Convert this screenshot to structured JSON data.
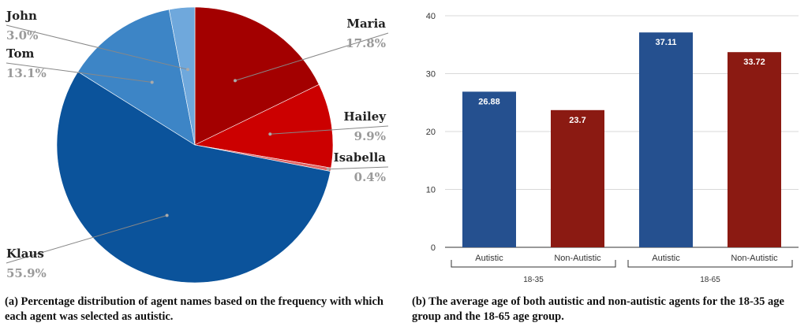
{
  "chart_data": [
    {
      "type": "pie",
      "slices": [
        {
          "label": "Maria",
          "value": 17.8,
          "pct_label": "17.8%",
          "color": "#a30000"
        },
        {
          "label": "Hailey",
          "value": 9.9,
          "pct_label": "9.9%",
          "color": "#cc0000"
        },
        {
          "label": "Isabella",
          "value": 0.4,
          "pct_label": "0.4%",
          "color": "#e06666"
        },
        {
          "label": "Klaus",
          "value": 55.9,
          "pct_label": "55.9%",
          "color": "#0b539b"
        },
        {
          "label": "Tom",
          "value": 13.1,
          "pct_label": "13.1%",
          "color": "#3d85c6"
        },
        {
          "label": "John",
          "value": 3.0,
          "pct_label": "3.0%",
          "color": "#6fa8dc"
        }
      ],
      "caption": "(a) Percentage distribution of agent names based on the frequency with which each agent was selected as autistic."
    },
    {
      "type": "bar",
      "categories": [
        "Autistic",
        "Non-Autistic",
        "Autistic",
        "Non-Autistic"
      ],
      "groups": [
        "18-35",
        "18-65"
      ],
      "values": [
        26.88,
        23.7,
        37.11,
        33.72
      ],
      "value_labels": [
        "26.88",
        "23.7",
        "37.11",
        "33.72"
      ],
      "colors": [
        "#25508f",
        "#8b1a12",
        "#25508f",
        "#8b1a12"
      ],
      "yticks": [
        "0",
        "10",
        "20",
        "30",
        "40"
      ],
      "ylim": [
        0,
        40
      ],
      "grid": true,
      "caption": "(b) The average age of both autistic and non-autistic agents for the 18-35 age group and the 18-65 age group."
    }
  ]
}
